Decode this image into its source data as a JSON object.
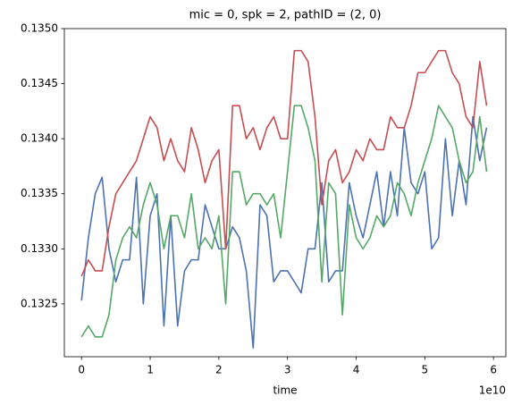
{
  "chart_data": {
    "type": "line",
    "title": "mic = 0, spk = 2, pathID = (2, 0)",
    "xlabel": "time",
    "x_offset_text": "1e10",
    "x": [
      0,
      1000000000.0,
      2000000000.0,
      3000000000.0,
      4000000000.0,
      5000000000.0,
      6000000000.0,
      7000000000.0,
      8000000000.0,
      9000000000.0,
      10000000000.0,
      11000000000.0,
      12000000000.0,
      13000000000.0,
      14000000000.0,
      15000000000.0,
      16000000000.0,
      17000000000.0,
      18000000000.0,
      19000000000.0,
      20000000000.0,
      21000000000.0,
      22000000000.0,
      23000000000.0,
      24000000000.0,
      25000000000.0,
      26000000000.0,
      27000000000.0,
      28000000000.0,
      29000000000.0,
      30000000000.0,
      31000000000.0,
      32000000000.0,
      33000000000.0,
      34000000000.0,
      35000000000.0,
      36000000000.0,
      37000000000.0,
      38000000000.0,
      39000000000.0,
      40000000000.0,
      41000000000.0,
      42000000000.0,
      43000000000.0,
      44000000000.0,
      45000000000.0,
      46000000000.0,
      47000000000.0,
      48000000000.0,
      49000000000.0,
      50000000000.0,
      51000000000.0,
      52000000000.0,
      53000000000.0,
      54000000000.0,
      55000000000.0,
      56000000000.0,
      57000000000.0,
      58000000000.0,
      59000000000.0
    ],
    "series": [
      {
        "color": "#4c72b0",
        "values": [
          0.13253,
          0.1331,
          0.1335,
          0.13365,
          0.133,
          0.1327,
          0.1329,
          0.1329,
          0.13365,
          0.1325,
          0.1333,
          0.1335,
          0.1323,
          0.1333,
          0.1323,
          0.1328,
          0.1329,
          0.1329,
          0.1334,
          0.1332,
          0.133,
          0.133,
          0.1332,
          0.1331,
          0.1328,
          0.1321,
          0.1334,
          0.1333,
          0.1327,
          0.1328,
          0.1328,
          0.1327,
          0.1326,
          0.133,
          0.133,
          0.1336,
          0.1327,
          0.1328,
          0.1328,
          0.1336,
          0.1333,
          0.1331,
          0.1334,
          0.1337,
          0.1332,
          0.1337,
          0.1333,
          0.1341,
          0.1336,
          0.1335,
          0.1337,
          0.133,
          0.1331,
          0.134,
          0.1333,
          0.1338,
          0.1334,
          0.1342,
          0.1338,
          0.1341
        ]
      },
      {
        "color": "#c44e52",
        "values": [
          0.13275,
          0.1329,
          0.1328,
          0.1328,
          0.1332,
          0.1335,
          0.1336,
          0.1337,
          0.1338,
          0.134,
          0.1342,
          0.1341,
          0.1338,
          0.134,
          0.1338,
          0.1337,
          0.1341,
          0.1339,
          0.1336,
          0.1338,
          0.1339,
          0.133,
          0.1343,
          0.1343,
          0.134,
          0.1341,
          0.1339,
          0.1341,
          0.1342,
          0.134,
          0.134,
          0.1348,
          0.1348,
          0.1347,
          0.1342,
          0.1334,
          0.1338,
          0.1339,
          0.1336,
          0.1337,
          0.1339,
          0.1338,
          0.134,
          0.1339,
          0.1339,
          0.1342,
          0.1341,
          0.1341,
          0.1343,
          0.1346,
          0.1346,
          0.1347,
          0.1348,
          0.1348,
          0.1346,
          0.1345,
          0.1342,
          0.1341,
          0.1347,
          0.1343
        ]
      },
      {
        "color": "#55a868",
        "values": [
          0.1322,
          0.1323,
          0.1322,
          0.1322,
          0.1324,
          0.1329,
          0.1331,
          0.1332,
          0.1331,
          0.1334,
          0.1336,
          0.1334,
          0.133,
          0.1333,
          0.1333,
          0.1331,
          0.1335,
          0.133,
          0.1331,
          0.133,
          0.1333,
          0.1325,
          0.1337,
          0.1337,
          0.1334,
          0.1335,
          0.1335,
          0.1334,
          0.1335,
          0.1331,
          0.1337,
          0.1343,
          0.1343,
          0.1341,
          0.1338,
          0.1327,
          0.1336,
          0.1335,
          0.1324,
          0.1334,
          0.1331,
          0.133,
          0.1331,
          0.1333,
          0.1332,
          0.1333,
          0.1336,
          0.1335,
          0.1333,
          0.1336,
          0.1338,
          0.134,
          0.1343,
          0.1342,
          0.1341,
          0.1338,
          0.1336,
          0.1337,
          0.1342,
          0.1337
        ]
      }
    ],
    "xlim": [
      -2500000000.0,
      61800000000.0
    ],
    "xticks": [
      0,
      {
        "value": 10000000000.0,
        "label": "1"
      },
      {
        "value": 20000000000.0,
        "label": "2"
      },
      {
        "value": 30000000000.0,
        "label": "3"
      },
      {
        "value": 40000000000.0,
        "label": "4"
      },
      {
        "value": 50000000000.0,
        "label": "5"
      },
      {
        "value": 60000000000.0,
        "label": "6"
      }
    ],
    "ylim": [
      0.13202,
      0.135
    ],
    "yticks": [
      0.1325,
      {
        "value": 0.133,
        "label": "0.1330"
      },
      0.1335,
      {
        "value": 0.134,
        "label": "0.1340"
      },
      0.1345,
      {
        "value": 0.135,
        "label": "0.1350"
      }
    ],
    "grid": false
  }
}
